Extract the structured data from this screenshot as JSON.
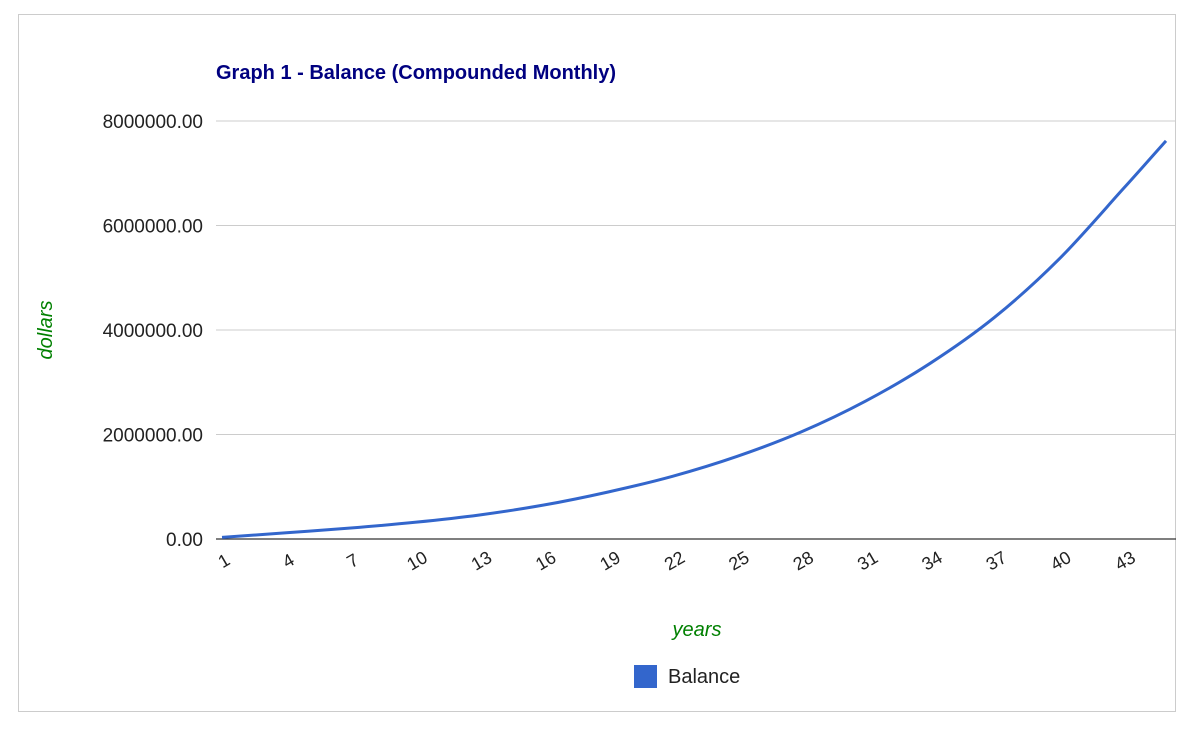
{
  "chart_data": {
    "type": "line",
    "title": "Graph 1 - Balance (Compounded Monthly)",
    "xlabel": "years",
    "ylabel": "dollars",
    "x_tick_labels": [
      "1",
      "4",
      "7",
      "10",
      "13",
      "16",
      "19",
      "22",
      "25",
      "28",
      "31",
      "34",
      "37",
      "40",
      "43"
    ],
    "y_tick_labels": [
      "0.00",
      "2000000.00",
      "4000000.00",
      "6000000.00",
      "8000000.00"
    ],
    "ylim": [
      0,
      8000000
    ],
    "xlim": [
      1,
      45
    ],
    "grid": true,
    "legend_position": "bottom",
    "series": [
      {
        "name": "Balance",
        "color": "#3366cc",
        "x": [
          1,
          4,
          7,
          10,
          13,
          16,
          19,
          22,
          25,
          28,
          31,
          34,
          37,
          40,
          43,
          45
        ],
        "values": [
          30000,
          120000,
          210000,
          320000,
          460000,
          650000,
          900000,
          1200000,
          1580000,
          2050000,
          2640000,
          3360000,
          4240000,
          5350000,
          6700000,
          7620000
        ]
      }
    ]
  }
}
